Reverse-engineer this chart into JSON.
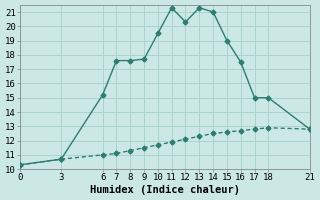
{
  "title": "",
  "xlabel": "Humidex (Indice chaleur)",
  "ylabel": "",
  "background_color": "#cce8e4",
  "grid_color": "#aad4cc",
  "line_color": "#2e7d70",
  "xlim": [
    0,
    21
  ],
  "ylim": [
    10,
    21.5
  ],
  "xticks": [
    0,
    3,
    6,
    7,
    8,
    9,
    10,
    11,
    12,
    13,
    14,
    15,
    16,
    17,
    18,
    21
  ],
  "yticks": [
    10,
    11,
    12,
    13,
    14,
    15,
    16,
    17,
    18,
    19,
    20,
    21
  ],
  "line1_x": [
    0,
    3,
    6,
    7,
    8,
    9,
    10,
    11,
    12,
    13,
    14,
    15,
    16,
    17,
    18,
    21
  ],
  "line1_y": [
    10.3,
    10.7,
    15.2,
    17.6,
    17.6,
    17.7,
    19.5,
    21.3,
    20.3,
    21.3,
    21.0,
    19.0,
    17.5,
    15.0,
    15.0,
    12.8
  ],
  "line2_x": [
    0,
    3,
    6,
    7,
    8,
    9,
    10,
    11,
    12,
    13,
    14,
    15,
    16,
    17,
    18,
    21
  ],
  "line2_y": [
    10.3,
    10.7,
    11.0,
    11.1,
    11.3,
    11.5,
    11.7,
    11.9,
    12.1,
    12.3,
    12.5,
    12.6,
    12.7,
    12.8,
    12.9,
    12.8
  ],
  "tick_fontsize": 6.5,
  "xlabel_fontsize": 7.5,
  "marker_size": 2.5,
  "linewidth": 1.0
}
